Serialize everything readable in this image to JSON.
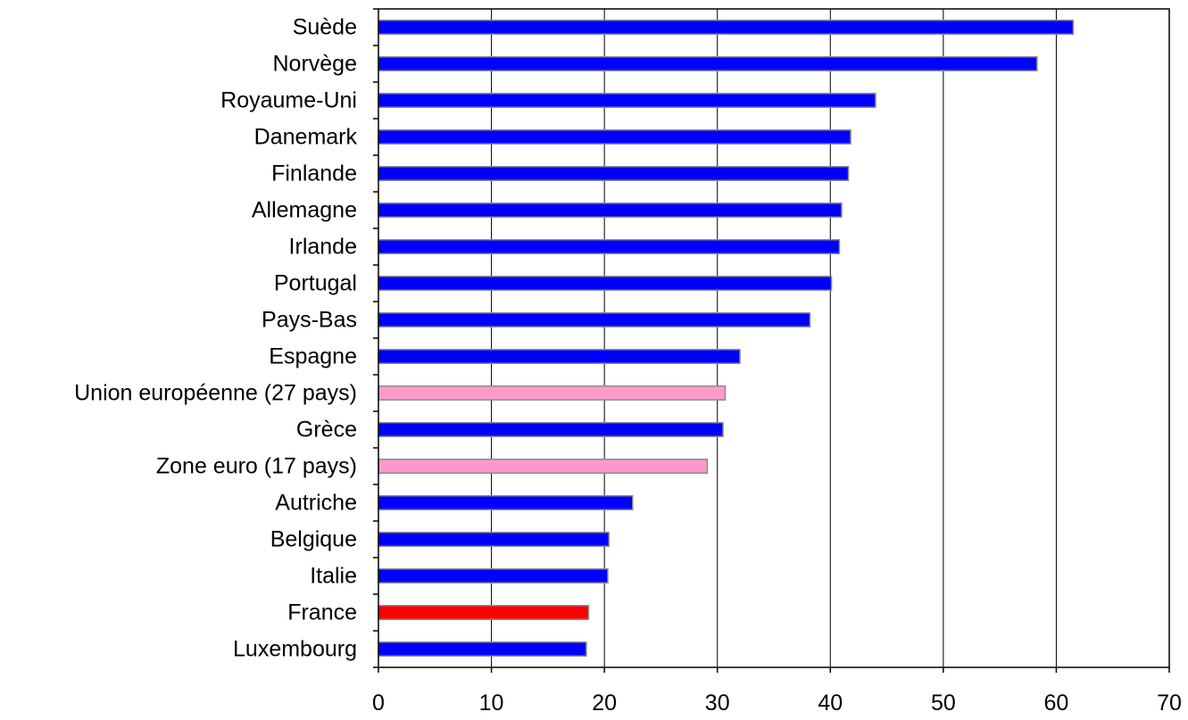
{
  "chart_data": {
    "type": "bar",
    "orientation": "horizontal",
    "title": "",
    "xlabel": "",
    "ylabel": "",
    "xlim": [
      0,
      70
    ],
    "x_ticks": [
      0,
      10,
      20,
      30,
      40,
      50,
      60,
      70
    ],
    "grid": "vertical",
    "legend": "none",
    "categories": [
      "Suède",
      "Norvège",
      "Royaume-Uni",
      "Danemark",
      "Finlande",
      "Allemagne",
      "Irlande",
      "Portugal",
      "Pays-Bas",
      "Espagne",
      "Union européenne (27 pays)",
      "Grèce",
      "Zone euro (17 pays)",
      "Autriche",
      "Belgique",
      "Italie",
      "France",
      "Luxembourg"
    ],
    "values": [
      61.5,
      58.3,
      44.0,
      41.8,
      41.6,
      41.0,
      40.8,
      40.1,
      38.2,
      32.0,
      30.7,
      30.5,
      29.1,
      22.5,
      20.4,
      20.3,
      18.6,
      18.4
    ],
    "bar_colors": [
      "#0000ff",
      "#0000ff",
      "#0000ff",
      "#0000ff",
      "#0000ff",
      "#0000ff",
      "#0000ff",
      "#0000ff",
      "#0000ff",
      "#0000ff",
      "#ff99cc",
      "#0000ff",
      "#ff99cc",
      "#0000ff",
      "#0000ff",
      "#0000ff",
      "#ff0000",
      "#0000ff"
    ]
  }
}
